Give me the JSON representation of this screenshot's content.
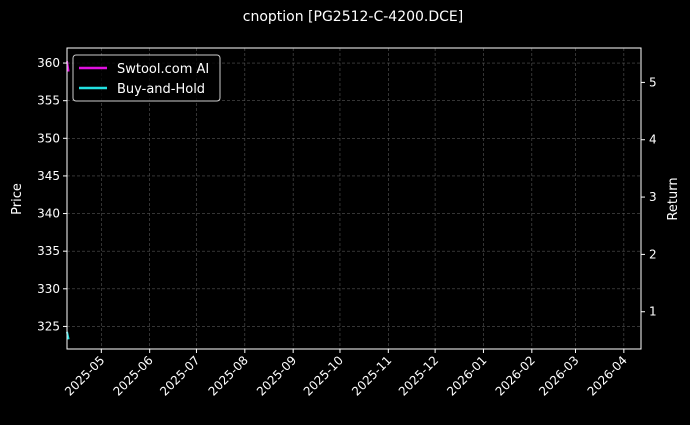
{
  "chart_data": {
    "type": "line",
    "title": "cnoption [PG2512-C-4200.DCE]",
    "ylabel_left": "Price",
    "ylabel_right": "Return",
    "ylim_left": [
      322,
      362
    ],
    "ylim_right": [
      0.35,
      5.6
    ],
    "xlim": [
      "2025-04-09",
      "2026-04-12"
    ],
    "yticks_left": [
      325,
      330,
      335,
      340,
      345,
      350,
      355,
      360
    ],
    "yticks_right": [
      1,
      2,
      3,
      4,
      5
    ],
    "xticks": [
      "2025-05",
      "2025-06",
      "2025-07",
      "2025-08",
      "2025-09",
      "2025-10",
      "2025-11",
      "2025-12",
      "2026-01",
      "2026-02",
      "2026-03",
      "2026-04"
    ],
    "grid": true,
    "legend_position": "top-left",
    "series": [
      {
        "name": "Swtool.com AI",
        "color": "#e011e0",
        "axis": "right",
        "x": [
          "2025-04-09",
          "2025-04-10"
        ],
        "y": [
          5.37,
          5.19
        ]
      },
      {
        "name": "Buy-and-Hold",
        "color": "#22e0e0",
        "axis": "right",
        "x": [
          "2025-04-09",
          "2025-04-10"
        ],
        "y": [
          0.65,
          0.52
        ]
      }
    ]
  }
}
